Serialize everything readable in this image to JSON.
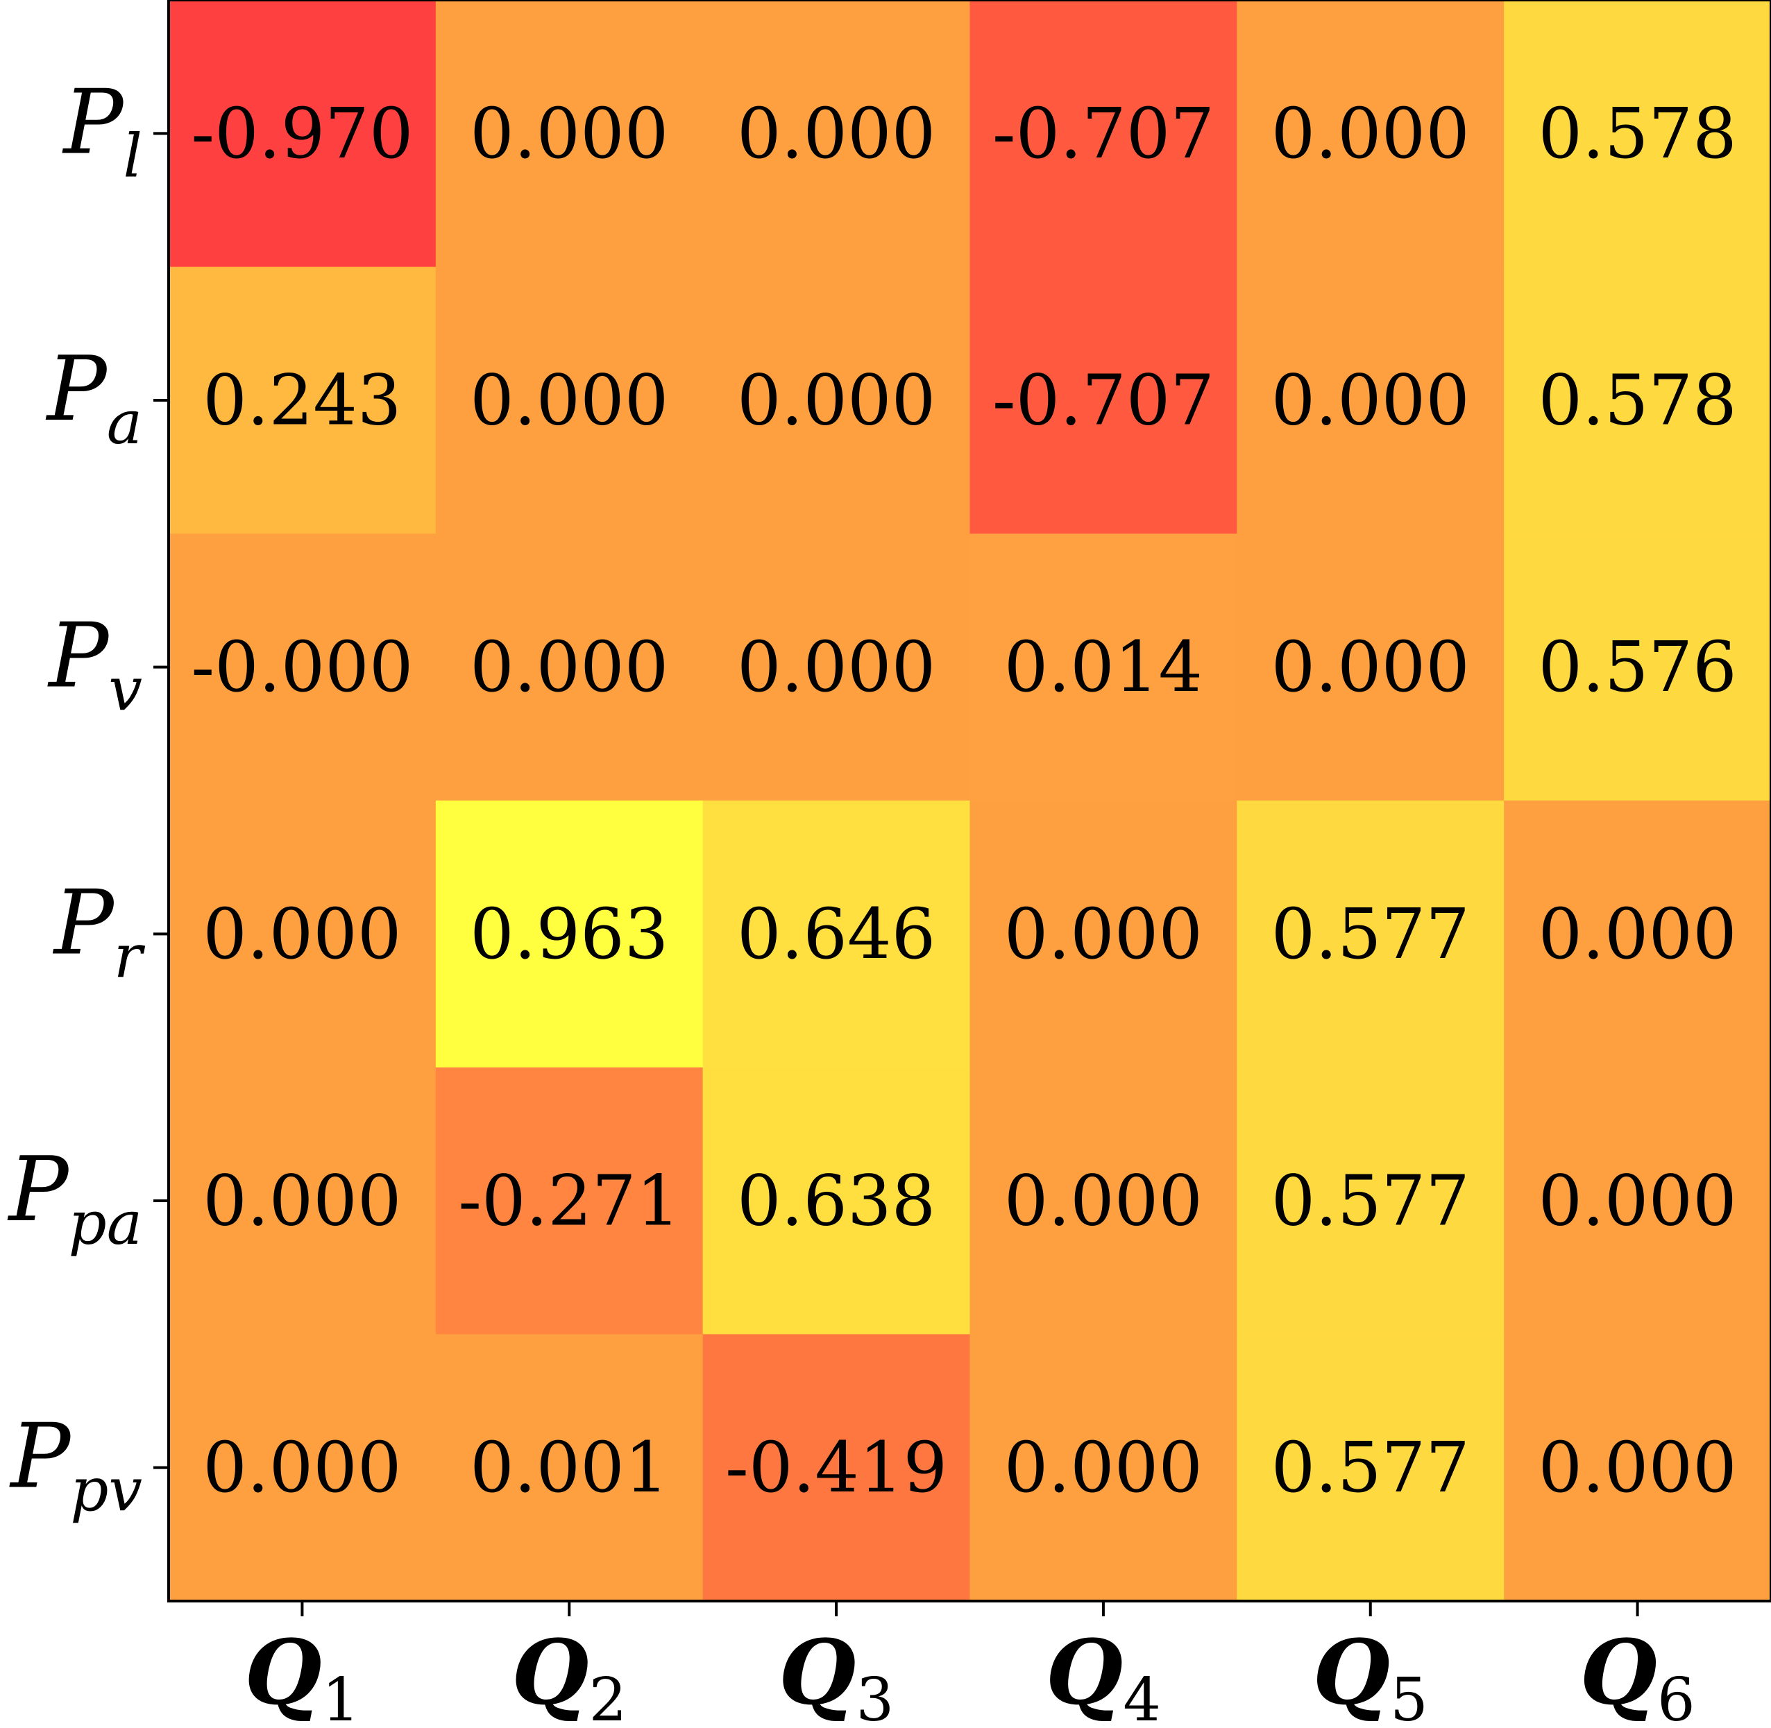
{
  "chart_data": {
    "type": "heatmap",
    "title": "",
    "xlabel": "",
    "ylabel": "",
    "x_categories": [
      {
        "main": "Q",
        "sub": "1"
      },
      {
        "main": "Q",
        "sub": "2"
      },
      {
        "main": "Q",
        "sub": "3"
      },
      {
        "main": "Q",
        "sub": "4"
      },
      {
        "main": "Q",
        "sub": "5"
      },
      {
        "main": "Q",
        "sub": "6"
      }
    ],
    "y_categories": [
      {
        "main": "P",
        "sub": "l"
      },
      {
        "main": "P",
        "sub": "a"
      },
      {
        "main": "P",
        "sub": "v"
      },
      {
        "main": "P",
        "sub": "r"
      },
      {
        "main": "P",
        "sub": "pa"
      },
      {
        "main": "P",
        "sub": "pv"
      }
    ],
    "values": [
      [
        -0.97,
        0.0,
        0.0,
        -0.707,
        0.0,
        0.578
      ],
      [
        0.243,
        0.0,
        0.0,
        -0.707,
        0.0,
        0.578
      ],
      [
        -0.0,
        0.0,
        0.0,
        0.014,
        0.0,
        0.576
      ],
      [
        0.0,
        0.963,
        0.646,
        0.0,
        0.577,
        0.0
      ],
      [
        0.0,
        -0.271,
        0.638,
        0.0,
        0.577,
        0.0
      ],
      [
        0.0,
        0.001,
        -0.419,
        0.0,
        0.577,
        0.0
      ]
    ],
    "value_labels": [
      [
        "-0.970",
        "0.000",
        "0.000",
        "-0.707",
        "0.000",
        "0.578"
      ],
      [
        "0.243",
        "0.000",
        "0.000",
        "-0.707",
        "0.000",
        "0.578"
      ],
      [
        "-0.000",
        "0.000",
        "0.000",
        "0.014",
        "0.000",
        "0.576"
      ],
      [
        "0.000",
        "0.963",
        "0.646",
        "0.000",
        "0.577",
        "0.000"
      ],
      [
        "0.000",
        "-0.271",
        "0.638",
        "0.000",
        "0.577",
        "0.000"
      ],
      [
        "0.000",
        "0.001",
        "-0.419",
        "0.000",
        "0.577",
        "0.000"
      ]
    ],
    "value_range": [
      -0.97,
      0.963
    ],
    "colormap": "autumn",
    "colormap_endpoints": [
      "#ff0000",
      "#ffff00"
    ],
    "colorbar": false,
    "grid": false
  }
}
